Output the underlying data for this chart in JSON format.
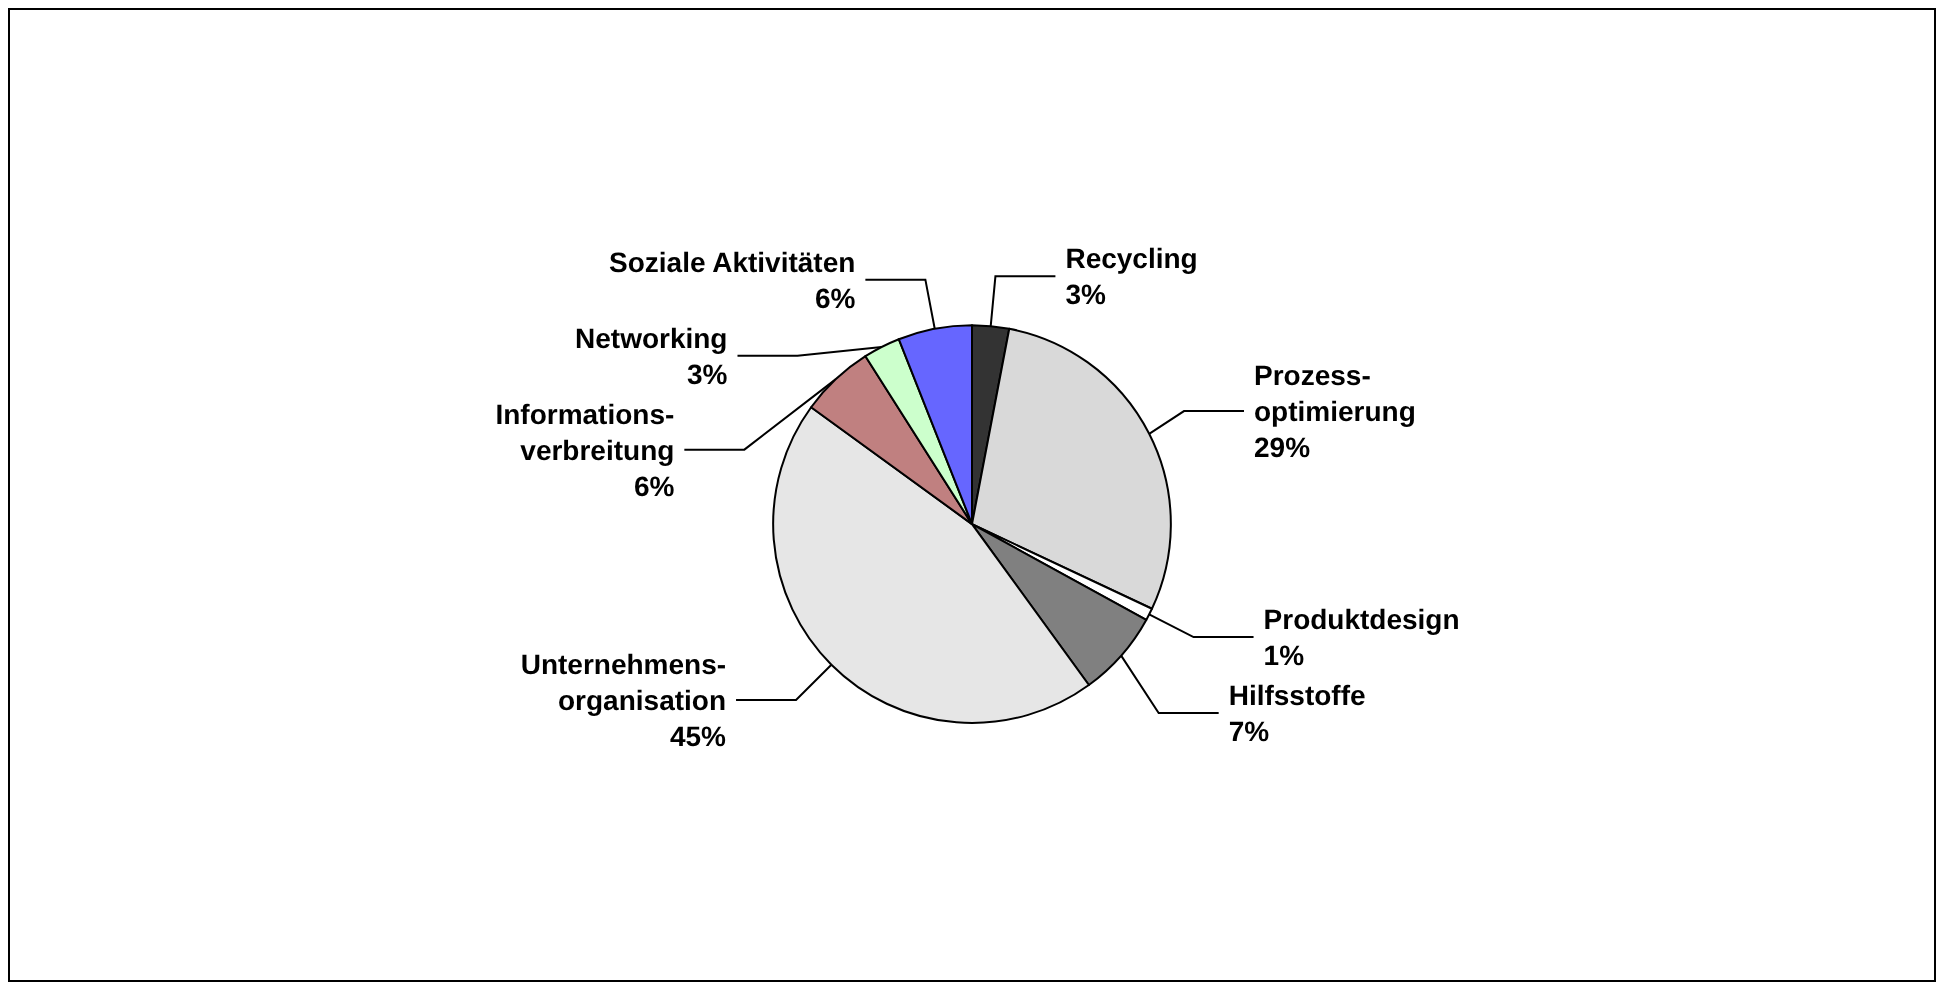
{
  "chart_data": {
    "type": "pie",
    "categories": [
      "Recycling",
      "Prozess-\noptimierung",
      "Produktdesign",
      "Hilfsstoffe",
      "Unternehmens-\norganisation",
      "Informations-\nverbreitung",
      "Networking",
      "Soziale Aktivitäten"
    ],
    "values": [
      3,
      29,
      1,
      7,
      45,
      6,
      3,
      6
    ],
    "value_labels": [
      "3%",
      "29%",
      "1%",
      "7%",
      "45%",
      "6%",
      "3%",
      "6%"
    ],
    "colors": [
      "#333333",
      "#d9d9d9",
      "#ffffff",
      "#808080",
      "#e6e6e6",
      "#c08080",
      "#ccffcc",
      "#6666ff"
    ],
    "legend": false
  }
}
